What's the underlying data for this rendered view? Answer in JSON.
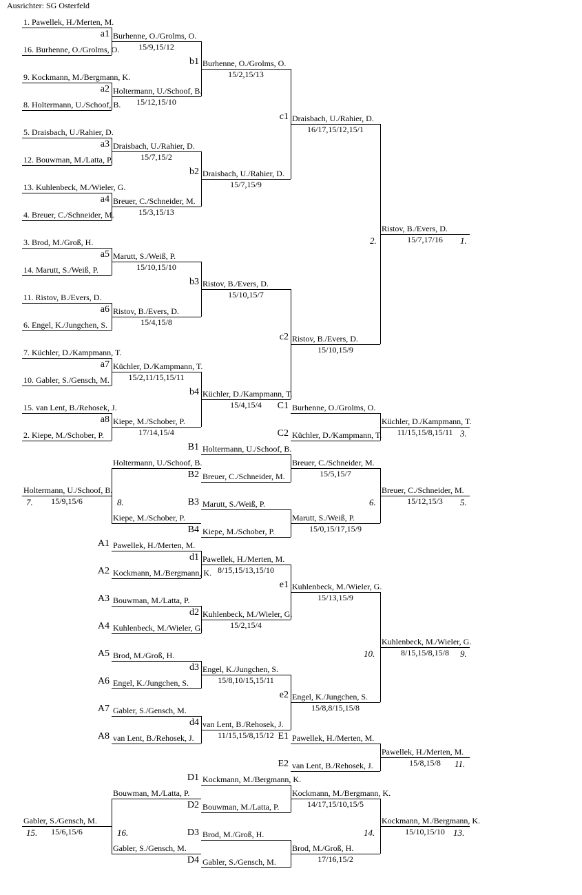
{
  "header": "Ausrichter: SG Osterfeld",
  "main": {
    "seeds": [
      "1. Pawellek, H./Merten, M.",
      "16. Burhenne, O./Grolms, O.",
      "9. Kockmann, M./Bergmann, K.",
      "8. Holtermann, U./Schoof, B.",
      "5. Draisbach, U./Rahier, D.",
      "12. Bouwman, M./Latta, P.",
      "13. Kuhlenbeck, M./Wieler, G.",
      "4. Breuer, C./Schneider, M.",
      "3. Brod, M./Groß, H.",
      "14. Marutt, S./Weiß, P.",
      "11. Ristov, B./Evers, D.",
      "6. Engel, K./Jungchen, S.",
      "7. Küchler, D./Kampmann, T.",
      "10. Gabler, S./Gensch, M.",
      "15. van Lent, B./Rehosek, J.",
      "2. Kiepe, M./Schober, P."
    ],
    "a": [
      {
        "label": "a1",
        "name": "Burhenne, O./Grolms, O.",
        "score": "15/9,15/12"
      },
      {
        "label": "a2",
        "name": "Holtermann, U./Schoof, B.",
        "score": "15/12,15/10"
      },
      {
        "label": "a3",
        "name": "Draisbach, U./Rahier, D.",
        "score": "15/7,15/2"
      },
      {
        "label": "a4",
        "name": "Breuer, C./Schneider, M.",
        "score": "15/3,15/13"
      },
      {
        "label": "a5",
        "name": "Marutt, S./Weiß, P.",
        "score": "15/10,15/10"
      },
      {
        "label": "a6",
        "name": "Ristov, B./Evers, D.",
        "score": "15/4,15/8"
      },
      {
        "label": "a7",
        "name": "Küchler, D./Kampmann, T.",
        "score": "15/2,11/15,15/11"
      },
      {
        "label": "a8",
        "name": "Kiepe, M./Schober, P.",
        "score": "17/14,15/4"
      }
    ],
    "b": [
      {
        "label": "b1",
        "name": "Burhenne, O./Grolms, O.",
        "score": "15/2,15/13"
      },
      {
        "label": "b2",
        "name": "Draisbach, U./Rahier, D.",
        "score": "15/7,15/9"
      },
      {
        "label": "b3",
        "name": "Ristov, B./Evers, D.",
        "score": "15/10,15/7"
      },
      {
        "label": "b4",
        "name": "Küchler, D./Kampmann, T.",
        "score": "15/4,15/4"
      }
    ],
    "c": [
      {
        "label": "c1",
        "name": "Draisbach, U./Rahier, D.",
        "score": "16/17,15/12,15/1"
      },
      {
        "label": "c2",
        "name": "Ristov, B./Evers, D.",
        "score": "15/10,15/9"
      }
    ],
    "final": {
      "name": "Ristov, B./Evers, D.",
      "score": "15/7,17/16",
      "place": "1.",
      "loser_place": "2."
    }
  },
  "third": {
    "C": [
      {
        "label": "C1",
        "name": "Burhenne, O./Grolms, O."
      },
      {
        "label": "C2",
        "name": "Küchler, D./Kampmann, T."
      }
    ],
    "winner": {
      "name": "Küchler, D./Kampmann, T.",
      "score": "11/15,15/8,15/11",
      "place": "3."
    }
  },
  "fifth": {
    "B": [
      {
        "label": "B1",
        "name": "Holtermann, U./Schoof, B."
      },
      {
        "label": "B2",
        "name": "Breuer, C./Schneider, M."
      },
      {
        "label": "B3",
        "name": "Marutt, S./Weiß, P."
      },
      {
        "label": "B4",
        "name": "Kiepe, M./Schober, P."
      }
    ],
    "semis": [
      {
        "name": "Breuer, C./Schneider, M.",
        "score": "15/5,15/7"
      },
      {
        "name": "Marutt, S./Weiß, P.",
        "score": "15/0,15/17,15/9"
      }
    ],
    "winner": {
      "name": "Breuer, C./Schneider, M.",
      "score": "15/12,15/3",
      "place": "5.",
      "loser_place": "6."
    },
    "left_semis": [
      "Holtermann, U./Schoof, B.",
      "Kiepe, M./Schober, P."
    ],
    "left_winner": {
      "name": "Holtermann, U./Schoof, B.",
      "score": "15/9,15/6",
      "place": "7.",
      "loser_place": "8."
    }
  },
  "ninth": {
    "A": [
      {
        "label": "A1",
        "name": "Pawellek, H./Merten, M."
      },
      {
        "label": "A2",
        "name": "Kockmann, M./Bergmann, K."
      },
      {
        "label": "A3",
        "name": "Bouwman, M./Latta, P."
      },
      {
        "label": "A4",
        "name": "Kuhlenbeck, M./Wieler, G."
      },
      {
        "label": "A5",
        "name": "Brod, M./Groß, H."
      },
      {
        "label": "A6",
        "name": "Engel, K./Jungchen, S."
      },
      {
        "label": "A7",
        "name": "Gabler, S./Gensch, M."
      },
      {
        "label": "A8",
        "name": "van Lent, B./Rehosek, J."
      }
    ],
    "d": [
      {
        "label": "d1",
        "name": "Pawellek, H./Merten, M.",
        "score": "8/15,15/13,15/10"
      },
      {
        "label": "d2",
        "name": "Kuhlenbeck, M./Wieler, G.",
        "score": "15/2,15/4"
      },
      {
        "label": "d3",
        "name": "Engel, K./Jungchen, S.",
        "score": "15/8,10/15,15/11"
      },
      {
        "label": "d4",
        "name": "van Lent, B./Rehosek, J.",
        "score": "11/15,15/8,15/12"
      }
    ],
    "e": [
      {
        "label": "e1",
        "name": "Kuhlenbeck, M./Wieler, G.",
        "score": "15/13,15/9"
      },
      {
        "label": "e2",
        "name": "Engel, K./Jungchen, S.",
        "score": "15/8,8/15,15/8"
      }
    ],
    "winner": {
      "name": "Kuhlenbeck, M./Wieler, G.",
      "score": "8/15,15/8,15/8",
      "place": "9.",
      "loser_place": "10."
    }
  },
  "eleventh": {
    "E": [
      {
        "label": "E1",
        "name": "Pawellek, H./Merten, M."
      },
      {
        "label": "E2",
        "name": "van Lent, B./Rehosek, J."
      }
    ],
    "winner": {
      "name": "Pawellek, H./Merten, M.",
      "score": "15/8,15/8",
      "place": "11."
    }
  },
  "thirteenth": {
    "D": [
      {
        "label": "D1",
        "name": "Kockmann, M./Bergmann, K."
      },
      {
        "label": "D2",
        "name": "Bouwman, M./Latta, P."
      },
      {
        "label": "D3",
        "name": "Brod, M./Groß, H."
      },
      {
        "label": "D4",
        "name": "Gabler, S./Gensch, M."
      }
    ],
    "semis": [
      {
        "name": "Kockmann, M./Bergmann, K.",
        "score": "14/17,15/10,15/5"
      },
      {
        "name": "Brod, M./Groß, H.",
        "score": "17/16,15/2"
      }
    ],
    "winner": {
      "name": "Kockmann, M./Bergmann, K.",
      "score": "15/10,15/10",
      "place": "13.",
      "loser_place": "14."
    },
    "left_semis": [
      "Bouwman, M./Latta, P.",
      "Gabler, S./Gensch, M."
    ],
    "left_winner": {
      "name": "Gabler, S./Gensch, M.",
      "score": "15/6,15/6",
      "place": "15.",
      "loser_place": "16."
    }
  }
}
